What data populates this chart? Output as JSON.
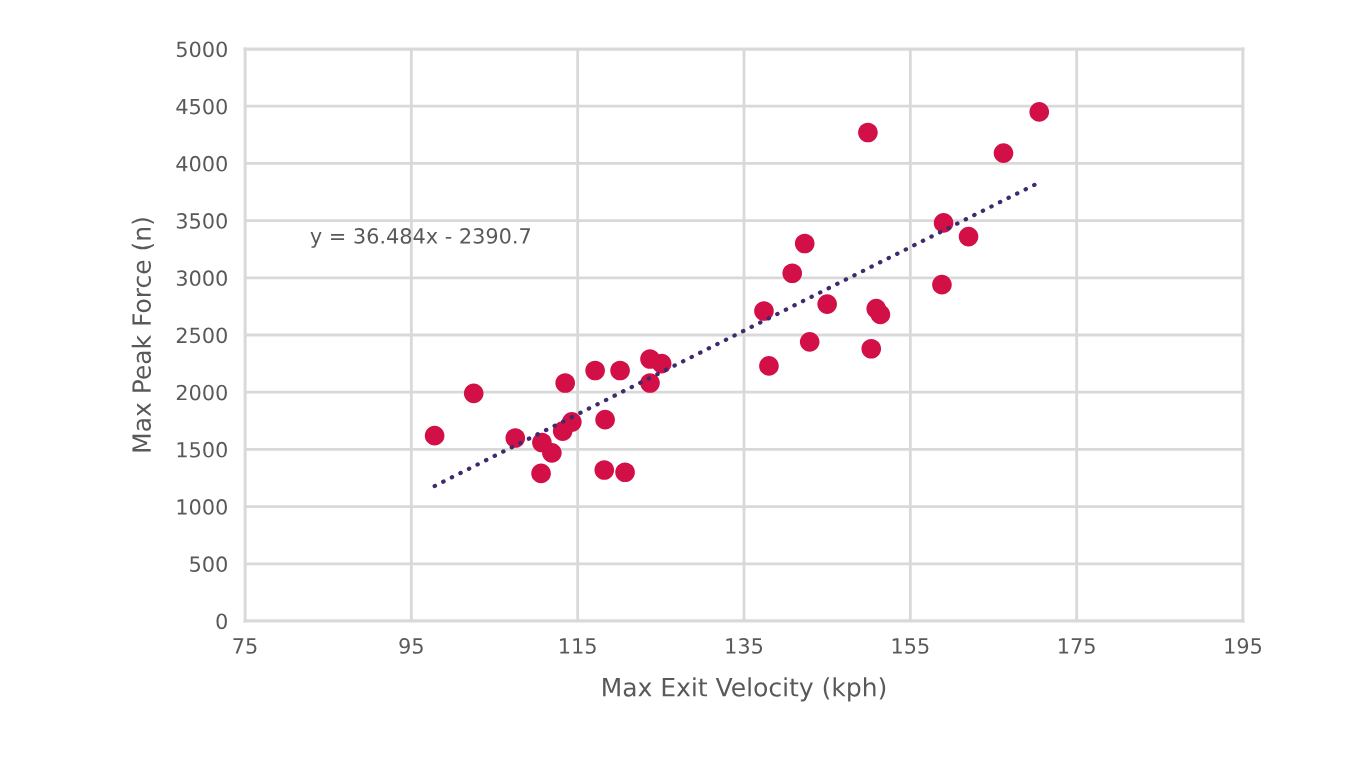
{
  "chart_data": {
    "type": "scatter",
    "xlabel": "Max Exit Velocity (kph)",
    "ylabel": "Max Peak Force (n)",
    "xlim": [
      75,
      195
    ],
    "xticks": [
      75,
      95,
      115,
      135,
      155,
      175,
      195
    ],
    "ylim": [
      0,
      5000
    ],
    "yticks": [
      0,
      500,
      1000,
      1500,
      2000,
      2500,
      3000,
      3500,
      4000,
      4500,
      5000
    ],
    "grid": true,
    "marker": "circle",
    "annotations": [
      "y = 36.484x - 2390.7"
    ],
    "series": [
      {
        "color": "#d20f46",
        "x": [
          97.8,
          102.5,
          107.5,
          110.6,
          110.7,
          111.9,
          113.2,
          113.5,
          114.3,
          117.1,
          118.2,
          118.3,
          120.1,
          120.7,
          123.7,
          123.7,
          125.1,
          137.4,
          138.0,
          140.8,
          142.3,
          142.9,
          145.0,
          149.9,
          150.3,
          150.9,
          151.4,
          158.8,
          159.0,
          162.0,
          166.2,
          170.5
        ],
        "values": [
          1620,
          1990,
          1600,
          1290,
          1560,
          1470,
          1660,
          2080,
          1740,
          2190,
          1320,
          1760,
          2190,
          1300,
          2290,
          2080,
          2250,
          2710,
          2230,
          3040,
          3300,
          2440,
          2770,
          4270,
          2380,
          2730,
          2680,
          2940,
          3480,
          3360,
          4090,
          4450
        ]
      },
      {
        "type": "line",
        "color": "#3f2a6e",
        "line_style": "dotted",
        "marker": "none",
        "x": [
          97.8,
          170.4
        ],
        "values": [
          1180,
          3830
        ]
      }
    ]
  }
}
